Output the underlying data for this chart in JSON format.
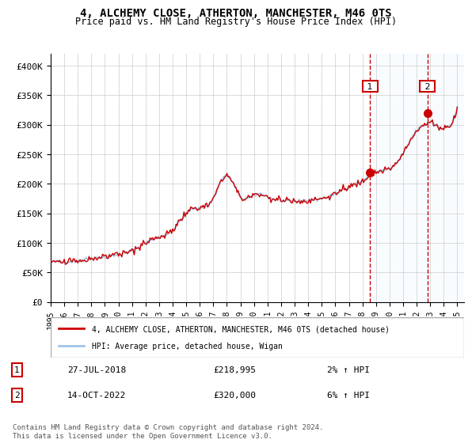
{
  "title": "4, ALCHEMY CLOSE, ATHERTON, MANCHESTER, M46 0TS",
  "subtitle": "Price paid vs. HM Land Registry's House Price Index (HPI)",
  "ylabel_ticks": [
    "£0",
    "£50K",
    "£100K",
    "£150K",
    "£200K",
    "£250K",
    "£300K",
    "£350K",
    "£400K"
  ],
  "ytick_values": [
    0,
    50000,
    100000,
    150000,
    200000,
    250000,
    300000,
    350000,
    400000
  ],
  "ylim": [
    0,
    420000
  ],
  "xlim_start": 1995.0,
  "xlim_end": 2025.5,
  "hpi_color": "#a0c4e8",
  "price_color": "#cc0000",
  "marker_color": "#cc0000",
  "dashed_color": "#cc0000",
  "shade_color": "#ddeeff",
  "purchase1_x": 2018.57,
  "purchase1_y": 218995,
  "purchase2_x": 2022.79,
  "purchase2_y": 320000,
  "purchase1_label": "27-JUL-2018",
  "purchase1_price": "£218,995",
  "purchase1_hpi": "2% ↑ HPI",
  "purchase2_label": "14-OCT-2022",
  "purchase2_price": "£320,000",
  "purchase2_hpi": "6% ↑ HPI",
  "legend1": "4, ALCHEMY CLOSE, ATHERTON, MANCHESTER, M46 0TS (detached house)",
  "legend2": "HPI: Average price, detached house, Wigan",
  "footnote": "Contains HM Land Registry data © Crown copyright and database right 2024.\nThis data is licensed under the Open Government Licence v3.0.",
  "xticks": [
    1995,
    1996,
    1997,
    1998,
    1999,
    2000,
    2001,
    2002,
    2003,
    2004,
    2005,
    2006,
    2007,
    2008,
    2009,
    2010,
    2011,
    2012,
    2013,
    2014,
    2015,
    2016,
    2017,
    2018,
    2019,
    2020,
    2021,
    2022,
    2023,
    2024,
    2025
  ]
}
